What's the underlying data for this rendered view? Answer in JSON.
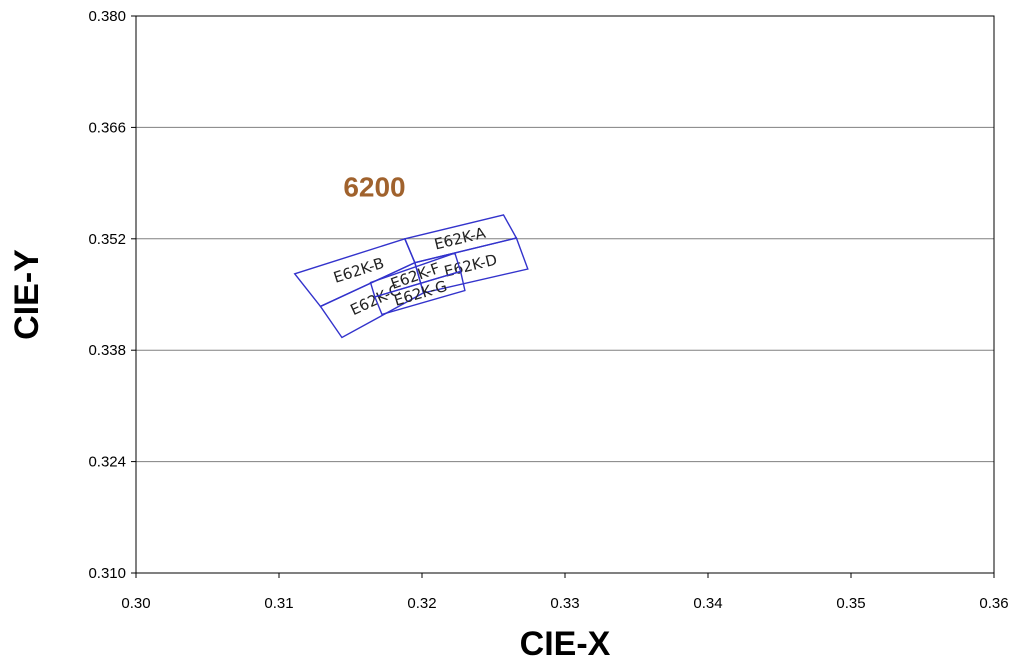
{
  "chart_data": {
    "type": "scatter",
    "title": "",
    "xlabel": "CIE-X",
    "ylabel": "CIE-Y",
    "xlim": [
      0.3,
      0.36
    ],
    "ylim": [
      0.31,
      0.38
    ],
    "x_ticks": [
      "0.30",
      "0.31",
      "0.32",
      "0.33",
      "0.34",
      "0.35",
      "0.36"
    ],
    "y_ticks": [
      "0.310",
      "0.324",
      "0.338",
      "0.352",
      "0.366",
      "0.380"
    ],
    "grid": "horizontal",
    "annotations": [
      {
        "text": "6200",
        "x": 0.3145,
        "y": 0.3586,
        "color": "#a0622d"
      }
    ],
    "bins": [
      {
        "name": "E62K-A",
        "polygon": [
          [
            0.3188,
            0.352
          ],
          [
            0.3257,
            0.355
          ],
          [
            0.3266,
            0.3521
          ],
          [
            0.3195,
            0.349
          ]
        ]
      },
      {
        "name": "E62K-B",
        "polygon": [
          [
            0.3111,
            0.3476
          ],
          [
            0.3188,
            0.352
          ],
          [
            0.3195,
            0.349
          ],
          [
            0.3129,
            0.3435
          ]
        ]
      },
      {
        "name": "E62K-C",
        "polygon": [
          [
            0.3129,
            0.3435
          ],
          [
            0.3195,
            0.349
          ],
          [
            0.3201,
            0.3452
          ],
          [
            0.3144,
            0.3396
          ]
        ]
      },
      {
        "name": "E62K-D",
        "polygon": [
          [
            0.3195,
            0.349
          ],
          [
            0.3266,
            0.3521
          ],
          [
            0.3274,
            0.3482
          ],
          [
            0.3201,
            0.3452
          ]
        ]
      },
      {
        "name": "E62K-F",
        "polygon": [
          [
            0.3164,
            0.3465
          ],
          [
            0.3223,
            0.3502
          ],
          [
            0.3227,
            0.3479
          ],
          [
            0.3167,
            0.3447
          ]
        ]
      },
      {
        "name": "E62K-G",
        "polygon": [
          [
            0.3167,
            0.3447
          ],
          [
            0.3227,
            0.3479
          ],
          [
            0.323,
            0.3455
          ],
          [
            0.3172,
            0.3425
          ]
        ]
      }
    ],
    "colors": {
      "bin_outline": "#3333cc",
      "grid": "#808080",
      "cct_label": "#a0622d"
    }
  }
}
